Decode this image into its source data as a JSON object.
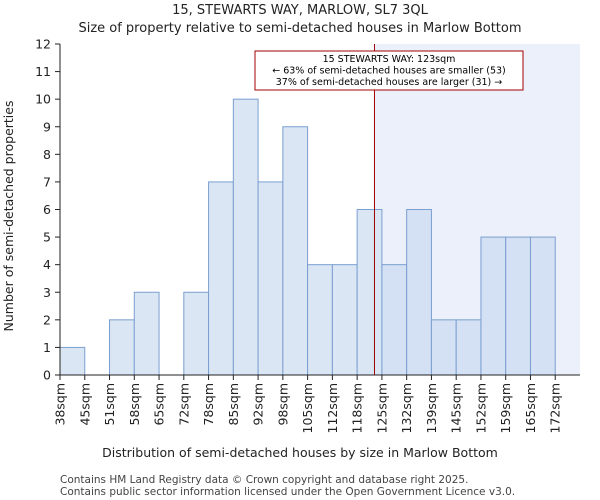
{
  "chart_data": {
    "type": "bar",
    "title": "15, STEWARTS WAY, MARLOW, SL7 3QL",
    "subtitle": "Size of property relative to semi-detached houses in Marlow Bottom",
    "xlabel": "Distribution of semi-detached houses by size in Marlow Bottom",
    "ylabel": "Number of semi-detached properties",
    "categories": [
      "38sqm",
      "45sqm",
      "51sqm",
      "58sqm",
      "65sqm",
      "72sqm",
      "78sqm",
      "85sqm",
      "92sqm",
      "98sqm",
      "105sqm",
      "112sqm",
      "118sqm",
      "125sqm",
      "132sqm",
      "139sqm",
      "145sqm",
      "152sqm",
      "159sqm",
      "165sqm",
      "172sqm"
    ],
    "values": [
      1,
      0,
      2,
      3,
      0,
      3,
      7,
      10,
      7,
      9,
      4,
      4,
      6,
      4,
      6,
      2,
      2,
      5,
      5,
      5,
      0
    ],
    "ylim": [
      0,
      12
    ],
    "yticks": [
      0,
      1,
      2,
      3,
      4,
      5,
      6,
      7,
      8,
      9,
      10,
      11,
      12
    ],
    "grid": false,
    "marker": {
      "value_sqm": 123,
      "position_category_index": 12.7,
      "label_line1": "15 STEWARTS WAY: 123sqm",
      "label_line2": "← 63% of semi-detached houses are smaller (53)",
      "label_line3": "37% of semi-detached houses are larger (31) →"
    },
    "colors": {
      "bar_fill": "#dbe6f5",
      "bar_fill_highlight": "#d4e0f3",
      "bar_stroke": "#7a9fd0",
      "highlight_region": "#ebf0fa",
      "marker_line": "#a00000",
      "annotation_border": "#a00000"
    }
  },
  "footer": {
    "line1": "Contains HM Land Registry data © Crown copyright and database right 2025.",
    "line2": "Contains public sector information licensed under the Open Government Licence v3.0."
  }
}
